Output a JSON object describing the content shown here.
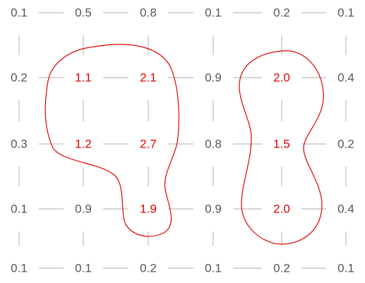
{
  "colors": {
    "normal_text": "#555555",
    "highlight": "#e00000",
    "grid": "#bdbdbd"
  },
  "grid": {
    "rows": [
      [
        "0.1",
        "0.5",
        "0.8",
        "0.1",
        "0.2",
        "0.1"
      ],
      [
        "0.2",
        "1.1",
        "2.1",
        "0.9",
        "2.0",
        "0.4"
      ],
      [
        "0.3",
        "1.2",
        "2.7",
        "0.8",
        "1.5",
        "0.2"
      ],
      [
        "0.1",
        "0.9",
        "1.9",
        "0.9",
        "2.0",
        "0.4"
      ],
      [
        "0.1",
        "0.1",
        "0.2",
        "0.1",
        "0.2",
        "0.1"
      ]
    ],
    "highlighted": [
      [
        false,
        false,
        false,
        false,
        false,
        false
      ],
      [
        false,
        true,
        true,
        false,
        true,
        false
      ],
      [
        false,
        true,
        true,
        false,
        true,
        false
      ],
      [
        false,
        false,
        true,
        false,
        true,
        false
      ],
      [
        false,
        false,
        false,
        false,
        false,
        false
      ]
    ]
  }
}
